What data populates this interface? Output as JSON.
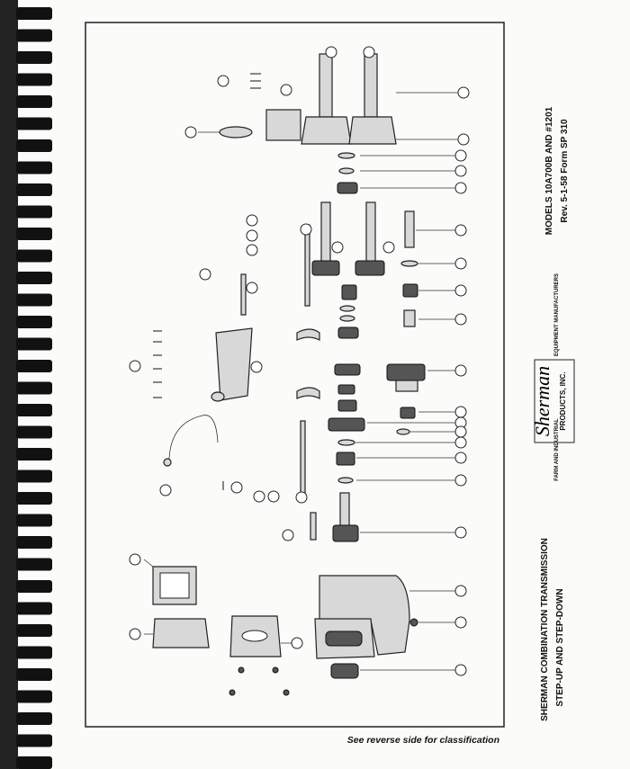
{
  "header": {
    "models": "MODELS 10A700B AND #1201",
    "revision": "Rev. 5-1-58   Form SP 310"
  },
  "logo": {
    "brand": "Sherman",
    "company": "PRODUCTS, INC.",
    "tagline_top": "EQUIPMENT MANUFACTURERS",
    "tagline_bottom": "FARM AND INDUSTRIAL"
  },
  "title": {
    "line1": "SHERMAN COMBINATION TRANSMISSION",
    "line2": "STEP-UP AND STEP-DOWN"
  },
  "footer": "See reverse side for classification"
}
